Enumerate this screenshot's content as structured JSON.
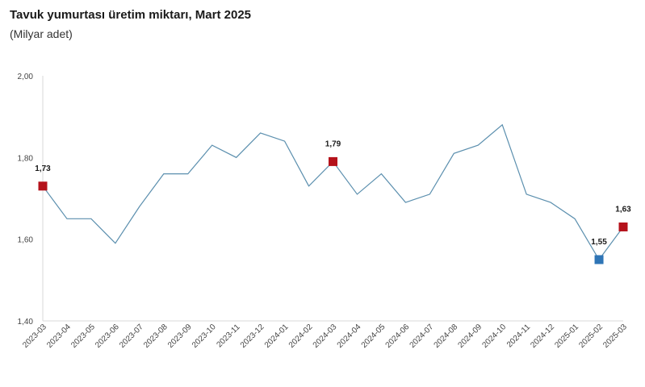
{
  "title": "Tavuk yumurtası üretim miktarı, Mart 2025",
  "subtitle": "(Milyar adet)",
  "chart_data": {
    "type": "line",
    "title": "Tavuk yumurtası üretim miktarı, Mart 2025",
    "ylabel": "(Milyar adet)",
    "xlabel": "",
    "ylim": [
      1.4,
      2.0
    ],
    "yticks": [
      1.4,
      1.6,
      1.8,
      2.0
    ],
    "ytick_labels": [
      "1,40",
      "1,60",
      "1,80",
      "2,00"
    ],
    "grid": false,
    "categories": [
      "2023-03",
      "2023-04",
      "2023-05",
      "2023-06",
      "2023-07",
      "2023-08",
      "2023-09",
      "2023-10",
      "2023-11",
      "2023-12",
      "2024-01",
      "2024-02",
      "2024-03",
      "2024-04",
      "2024-05",
      "2024-06",
      "2024-07",
      "2024-08",
      "2024-09",
      "2024-10",
      "2024-11",
      "2024-12",
      "2025-01",
      "2025-02",
      "2025-03"
    ],
    "series": [
      {
        "values": [
          1.73,
          1.65,
          1.65,
          1.59,
          1.68,
          1.76,
          1.76,
          1.83,
          1.8,
          1.86,
          1.84,
          1.73,
          1.79,
          1.71,
          1.76,
          1.69,
          1.71,
          1.81,
          1.83,
          1.88,
          1.71,
          1.69,
          1.65,
          1.55,
          1.63
        ]
      }
    ],
    "line_color": "#5b8fae",
    "markers": [
      {
        "category": "2023-03",
        "value": 1.73,
        "label": "1,73",
        "color": "#b5121b"
      },
      {
        "category": "2024-03",
        "value": 1.79,
        "label": "1,79",
        "color": "#b5121b"
      },
      {
        "category": "2025-02",
        "value": 1.55,
        "label": "1,55",
        "color": "#2e75b6"
      },
      {
        "category": "2025-03",
        "value": 1.63,
        "label": "1,63",
        "color": "#b5121b"
      }
    ]
  }
}
